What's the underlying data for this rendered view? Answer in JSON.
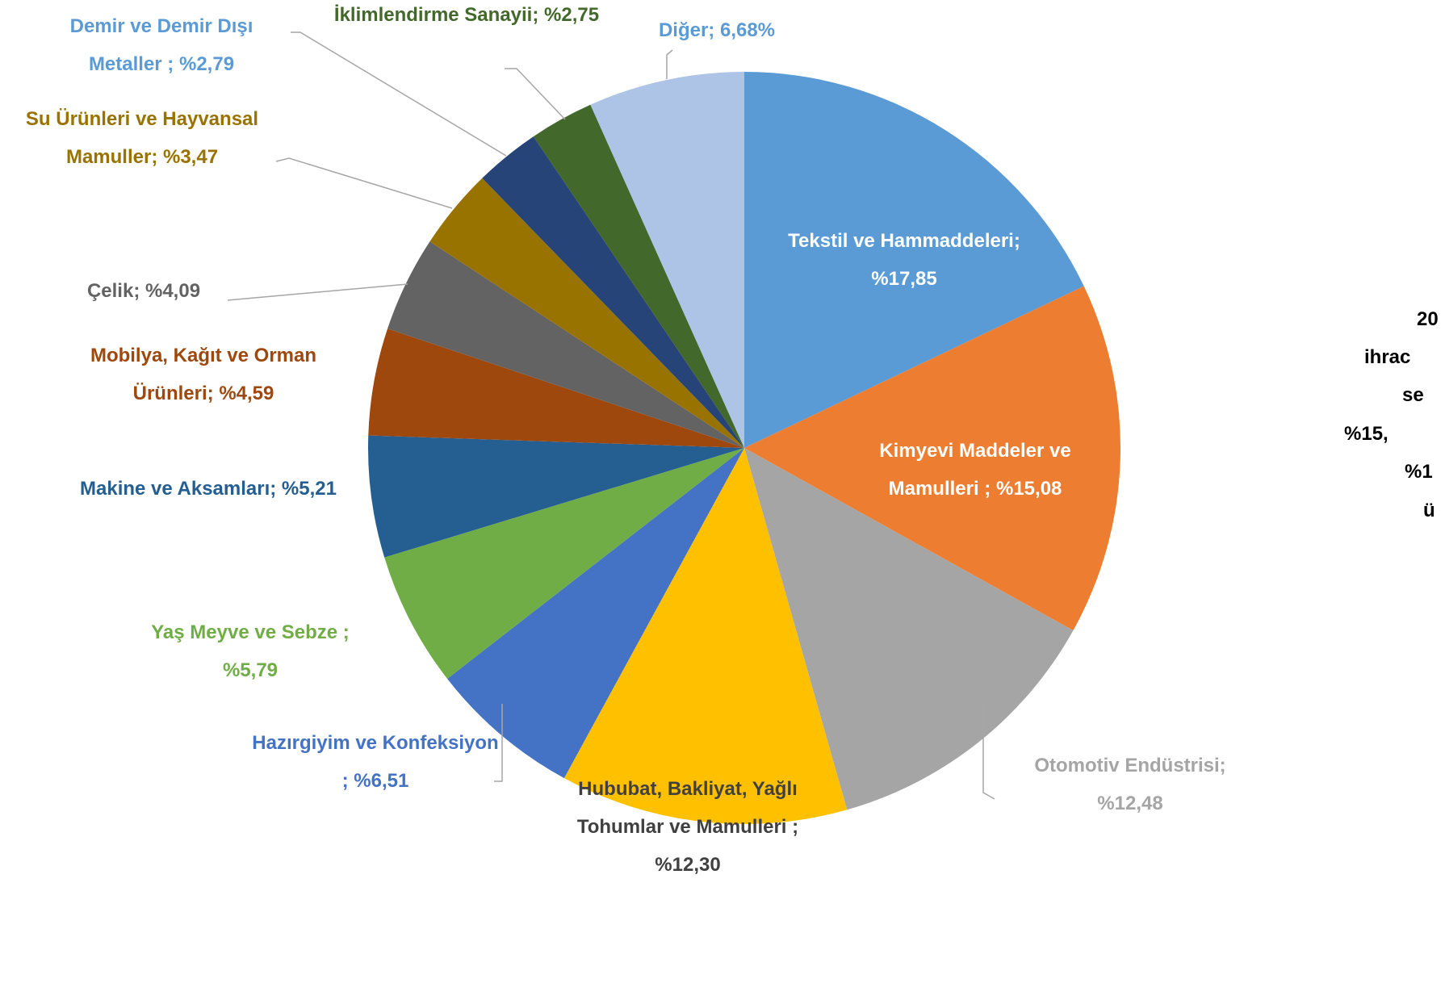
{
  "chart_data": {
    "type": "pie",
    "categories": [
      "Tekstil ve Hammaddeleri;",
      "Kimyevi Maddeler ve Mamulleri  ;",
      "Otomotiv Endüstrisi;",
      "Hububat, Bakliyat, Yağlı Tohumlar ve Mamulleri ;",
      "Hazırgiyim ve Konfeksiyon ;",
      "Yaş Meyve ve Sebze  ;",
      "Makine ve Aksamları;",
      "Mobilya, Kağıt ve Orman Ürünleri;",
      "Çelik;",
      "Su Ürünleri ve Hayvansal Mamuller;",
      "Demir ve Demir Dışı Metaller ;",
      "İklimlendirme Sanayii;",
      "Diğer;"
    ],
    "values": [
      17.85,
      15.08,
      12.48,
      12.3,
      6.51,
      5.79,
      5.21,
      4.59,
      4.09,
      3.47,
      2.79,
      2.75,
      6.68
    ],
    "value_labels": [
      "%17,85",
      "%15,08",
      "%12,48",
      "%12,30",
      "%6,51",
      "%5,79",
      "%5,21",
      "%4,59",
      "%4,09",
      "%3,47",
      "%2,79",
      "%2,75",
      "6,68%"
    ],
    "colors": [
      "#5b9bd5",
      "#ed7d31",
      "#a5a5a5",
      "#ffc000",
      "#4472c4",
      "#70ad47",
      "#255e91",
      "#9e480e",
      "#636363",
      "#997300",
      "#264478",
      "#43682b",
      "#adc4e6"
    ],
    "label_colors": [
      "#ffffff",
      "#ffffff",
      "#a5a5a5",
      "#404040",
      "#4472c4",
      "#70ad47",
      "#255e91",
      "#9e480e",
      "#636363",
      "#997300",
      "#5b9bd5",
      "#43682b",
      "#5b9bd5"
    ],
    "annotation": [
      "20",
      "ihrac",
      "se",
      "%15,",
      "%1",
      "ü"
    ]
  }
}
